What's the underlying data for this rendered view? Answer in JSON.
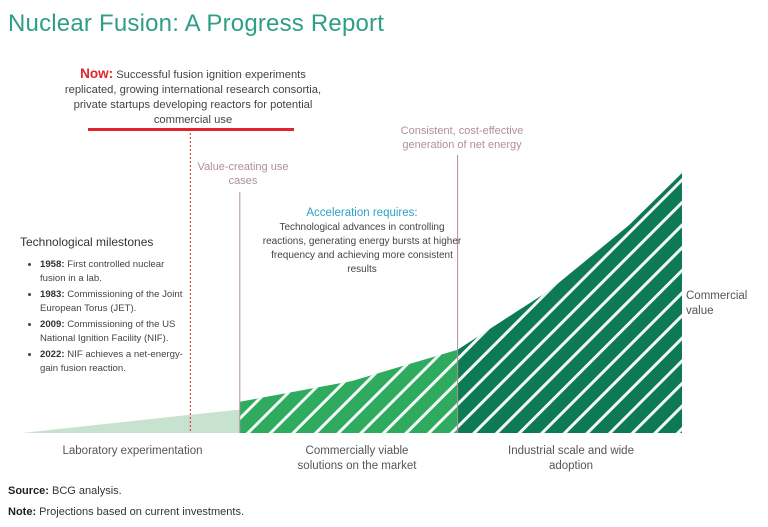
{
  "title": "Nuclear Fusion: A Progress Report",
  "now": {
    "label": "Now:",
    "text": "Successful fusion ignition experiments replicated, growing international research consortia, private startups developing reactors for potential commercial use"
  },
  "annotations": {
    "value_creating": "Value-creating use cases",
    "consistent": "Consistent, cost-effective generation of net energy"
  },
  "acceleration": {
    "title": "Acceleration requires:",
    "text": "Technological advances in controlling reactions, generating energy bursts at higher frequency and achieving more consistent results"
  },
  "milestones": {
    "title": "Technological milestones",
    "items": [
      {
        "year": "1958:",
        "text": "First controlled nuclear fusion in a lab."
      },
      {
        "year": "1983:",
        "text": "Commissioning of the Joint European Torus (JET)."
      },
      {
        "year": "2009:",
        "text": "Commissioning of the US National Ignition Facility (NIF)."
      },
      {
        "year": "2022:",
        "text": "NIF achieves a net-energy-gain fusion reaction."
      }
    ]
  },
  "phases": [
    {
      "label": "Laboratory experimentation"
    },
    {
      "label": "Commercially viable solutions on the market"
    },
    {
      "label": "Industrial scale and wide adoption"
    }
  ],
  "y_label": "Commercial value",
  "source": {
    "label": "Source:",
    "text": "BCG analysis."
  },
  "note": {
    "label": "Note:",
    "text": "Projections based on current investments."
  },
  "chart_data": {
    "type": "area",
    "title": "Nuclear Fusion: A Progress Report",
    "ylabel": "Commercial value",
    "x_phases": [
      "Laboratory experimentation",
      "Commercially viable solutions on the market",
      "Industrial scale and wide adoption"
    ],
    "series": [
      {
        "name": "Laboratory experimentation",
        "color": "#c7e3d0",
        "points": [
          [
            0,
            0
          ],
          [
            0.255,
            0.07
          ],
          [
            0.33,
            0.09
          ]
        ]
      },
      {
        "name": "Commercially viable solutions on the market",
        "color": "#2eab5e",
        "points": [
          [
            0.33,
            0.12
          ],
          [
            0.5,
            0.2
          ],
          [
            0.66,
            0.32
          ]
        ]
      },
      {
        "name": "Industrial scale and wide adoption",
        "color": "#0d7a55",
        "points": [
          [
            0.66,
            0.32
          ],
          [
            0.8,
            0.55
          ],
          [
            0.92,
            0.8
          ],
          [
            1.0,
            1.0
          ]
        ]
      }
    ],
    "markers": [
      {
        "x": 0.255,
        "label": "Now",
        "color": "#e0242b",
        "style": "dotted"
      },
      {
        "x": 0.33,
        "label": "Value-creating use cases",
        "color": "#b08f98"
      },
      {
        "x": 0.66,
        "label": "Consistent, cost-effective generation of net energy",
        "color": "#b08f98"
      }
    ],
    "grid": false
  },
  "colors": {
    "title": "#2e9f86",
    "now_accent": "#e0242b",
    "annotation": "#b08f98",
    "acceleration": "#2aa3c6",
    "phase1": "#c7e3d0",
    "phase2": "#2eab5e",
    "phase3": "#0d7a55"
  }
}
